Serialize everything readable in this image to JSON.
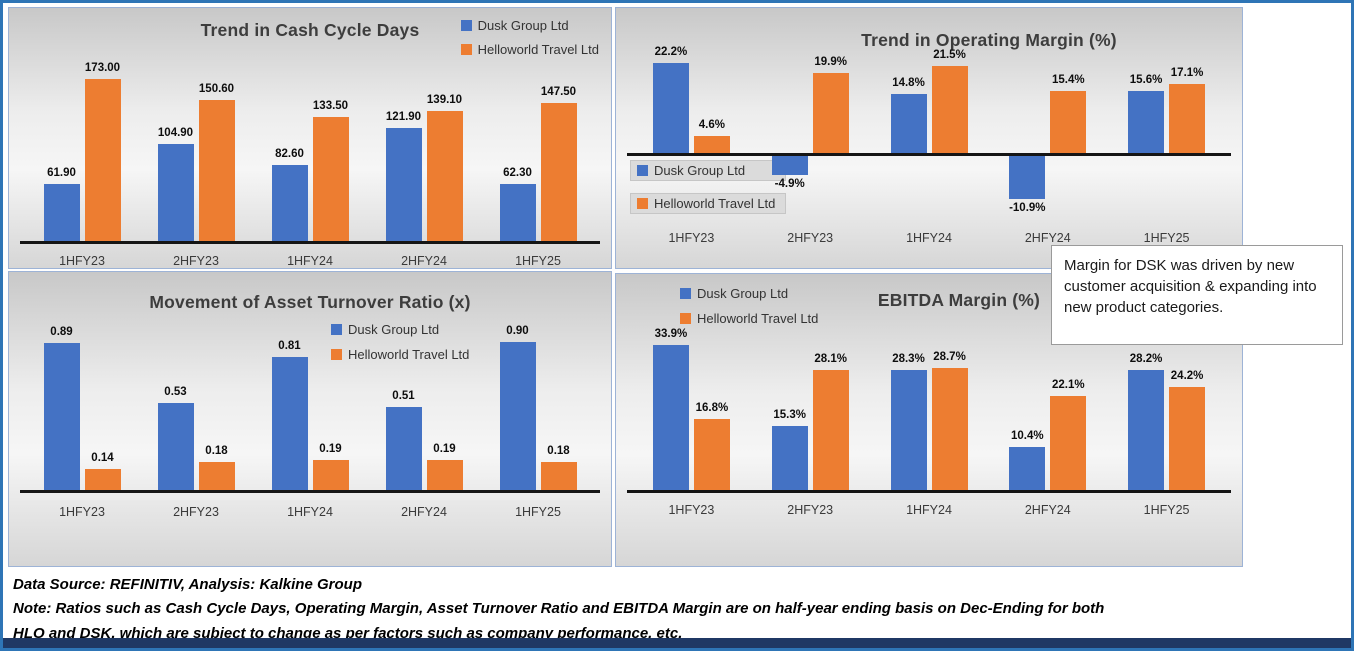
{
  "page": {
    "callout_text": "Margin for DSK was driven by new customer acquisition & expanding into new product categories.",
    "footer": {
      "source": "Data Source: REFINITIV, Analysis: Kalkine Group",
      "note_line1": "Note: Ratios such as Cash Cycle Days, Operating Margin, Asset Turnover Ratio and EBITDA Margin are on half-year ending basis on Dec-Ending for both",
      "note_line2": "HLO and DSK, which are subject to change as per factors such as company performance, etc."
    },
    "colors": {
      "dusk_blue": "#4472C4",
      "helloworld_orange": "#ED7D31",
      "outer_border": "#2E75B6",
      "bottom_bar": "#1F3864"
    }
  },
  "chart_data": [
    {
      "type": "bar",
      "title": "Trend in Cash Cycle Days",
      "categories": [
        "1HFY23",
        "2HFY23",
        "1HFY24",
        "2HFY24",
        "1HFY25"
      ],
      "series": [
        {
          "name": "Dusk Group Ltd",
          "color": "#4472C4",
          "values": [
            61.9,
            104.9,
            82.6,
            121.9,
            62.3
          ]
        },
        {
          "name": "Helloworld Travel Ltd",
          "color": "#ED7D31",
          "values": [
            173.0,
            150.6,
            133.5,
            139.1,
            147.5
          ]
        }
      ],
      "value_format": "fixed2",
      "ylim": [
        0,
        190
      ],
      "grid": false,
      "legend_position": "top-right"
    },
    {
      "type": "bar",
      "title": "Trend in Operating Margin (%)",
      "categories": [
        "1HFY23",
        "2HFY23",
        "1HFY24",
        "2HFY24",
        "1HFY25"
      ],
      "series": [
        {
          "name": "Dusk Group Ltd",
          "color": "#4472C4",
          "values": [
            22.2,
            -4.9,
            14.8,
            -10.9,
            15.6
          ]
        },
        {
          "name": "Helloworld Travel Ltd",
          "color": "#ED7D31",
          "values": [
            4.6,
            19.9,
            21.5,
            15.4,
            17.1
          ]
        }
      ],
      "value_format": "percent1",
      "ylim": [
        -13,
        24
      ],
      "grid": false,
      "legend_position": "middle-left"
    },
    {
      "type": "bar",
      "title": "Movement of Asset Turnover Ratio (x)",
      "categories": [
        "1HFY23",
        "2HFY23",
        "1HFY24",
        "2HFY24",
        "1HFY25"
      ],
      "series": [
        {
          "name": "Dusk Group Ltd",
          "color": "#4472C4",
          "values": [
            0.89,
            0.53,
            0.81,
            0.51,
            0.9
          ]
        },
        {
          "name": "Helloworld Travel Ltd",
          "color": "#ED7D31",
          "values": [
            0.14,
            0.18,
            0.19,
            0.19,
            0.18
          ]
        }
      ],
      "value_format": "fixed2",
      "ylim": [
        0,
        0.97
      ],
      "grid": false,
      "legend_position": "inner-right"
    },
    {
      "type": "bar",
      "title": "EBITDA Margin (%)",
      "categories": [
        "1HFY23",
        "2HFY23",
        "1HFY24",
        "2HFY24",
        "1HFY25"
      ],
      "series": [
        {
          "name": "Dusk Group Ltd",
          "color": "#4472C4",
          "values": [
            33.9,
            15.3,
            28.3,
            10.4,
            28.2
          ]
        },
        {
          "name": "Helloworld Travel Ltd",
          "color": "#ED7D31",
          "values": [
            16.8,
            28.1,
            28.7,
            22.1,
            24.2
          ]
        }
      ],
      "value_format": "percent1",
      "ylim": [
        0,
        37
      ],
      "grid": false,
      "legend_position": "top-left"
    }
  ]
}
